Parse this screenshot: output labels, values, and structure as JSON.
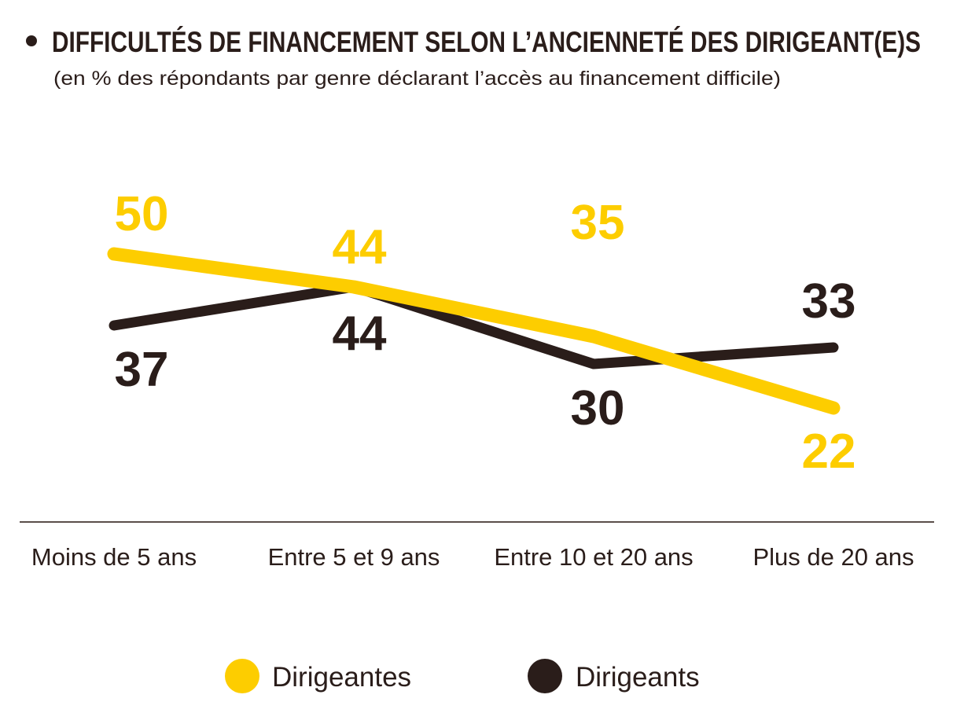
{
  "chart_data": {
    "type": "line",
    "title": "DIFFICULTÉS DE FINANCEMENT SELON L’ANCIENNETÉ DES DIRIGEANT(E)S",
    "subtitle": "(en % des répondants par genre déclarant l’accès au financement difficile)",
    "categories": [
      "Moins de 5 ans",
      "Entre 5 et 9 ans",
      "Entre 10 et 20 ans",
      "Plus de 20 ans"
    ],
    "series": [
      {
        "name": "Dirigeantes",
        "values": [
          50,
          44,
          35,
          22
        ],
        "labels": [
          "50",
          "44",
          "35",
          "22"
        ],
        "color": "#fdcd00"
      },
      {
        "name": "Dirigeants",
        "values": [
          37,
          44,
          30,
          33
        ],
        "labels": [
          "37",
          "44",
          "30",
          "33"
        ],
        "color": "#2a1d1a"
      }
    ],
    "grid": false,
    "legend_position": "bottom-center"
  }
}
